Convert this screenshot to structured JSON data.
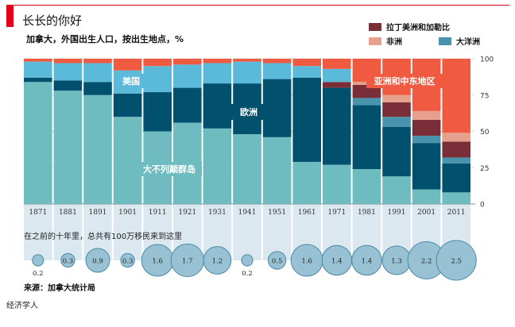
{
  "header": {
    "title": "长长的你好",
    "subtitle": "加拿大，外国出生人口，按出生地点，%"
  },
  "legend": [
    {
      "label": "拉丁美洲和加勒比",
      "color": "#7a2e38"
    },
    {
      "label": "非洲",
      "color": "#e8a08e"
    },
    {
      "label": "大洋洲",
      "color": "#4a93ad"
    }
  ],
  "chart_data": [
    {
      "type": "bar",
      "stacked": true,
      "percent": true,
      "categories": [
        "1871",
        "1881",
        "1891",
        "1901",
        "1911",
        "1921",
        "1931",
        "1941",
        "1951",
        "1961",
        "1971",
        "1981",
        "1991",
        "2001",
        "2011"
      ],
      "series": [
        {
          "name": "大不列颠群岛",
          "color": "#6fbcc0",
          "values": [
            84,
            78,
            75,
            60,
            50,
            56,
            52,
            48,
            46,
            29,
            27,
            24,
            19,
            10,
            8
          ]
        },
        {
          "name": "欧洲",
          "color": "#00506e",
          "values": [
            3,
            7,
            9,
            16,
            27,
            24,
            31,
            35,
            40,
            58,
            53,
            44,
            34,
            32,
            20
          ]
        },
        {
          "name": "大洋洲",
          "color": "#4a93ad",
          "values": [
            0,
            0,
            0,
            0,
            0,
            0,
            0,
            0,
            0,
            0,
            0,
            5,
            7,
            5,
            4
          ]
        },
        {
          "name": "拉丁美洲和加勒比",
          "color": "#7a2e38",
          "values": [
            0,
            0,
            0,
            0,
            0,
            0,
            0,
            0,
            0,
            0,
            4,
            9,
            10,
            11,
            11
          ]
        },
        {
          "name": "非洲",
          "color": "#e8a08e",
          "values": [
            0,
            0,
            0,
            0,
            0,
            0,
            0,
            0,
            0,
            0,
            0,
            2,
            5,
            6,
            6
          ]
        },
        {
          "name": "美国",
          "color": "#5bbad9",
          "values": [
            11,
            12,
            13,
            16,
            18,
            16,
            14,
            15,
            11,
            8,
            9,
            0,
            0,
            0,
            0
          ]
        },
        {
          "name": "亚洲和中东地区",
          "color": "#f05a40",
          "values": [
            2,
            3,
            3,
            8,
            5,
            4,
            3,
            2,
            3,
            5,
            7,
            16,
            25,
            36,
            51
          ]
        }
      ],
      "series_labels": [
        "美国",
        "欧洲",
        "大不列颠群岛",
        "亚洲和中东地区"
      ],
      "ylim": [
        0,
        100
      ],
      "yticks": [
        0,
        25,
        50,
        75,
        100
      ]
    },
    {
      "type": "bubble",
      "title": "在之前的十年里，总共有100万移民来到这里",
      "categories": [
        "1871",
        "1881",
        "1891",
        "1901",
        "1911",
        "1921",
        "1931",
        "1941",
        "1951",
        "1961",
        "1971",
        "1981",
        "1991",
        "2001",
        "2011"
      ],
      "values": [
        0.2,
        0.3,
        0.9,
        0.3,
        1.6,
        1.7,
        1.2,
        0.2,
        0.5,
        1.6,
        1.4,
        1.4,
        1.3,
        2.2,
        2.5
      ],
      "value_labels": [
        "0.2",
        "0.3",
        "0.9",
        "0.3",
        "1.6",
        "1.7",
        "1.2",
        "0.2",
        "0.5",
        "1.6",
        "1.4",
        "1.4",
        "1.3",
        "2.2",
        "2.5"
      ]
    }
  ],
  "footer": {
    "source": "来源：加拿大统计局",
    "brand": "经济学人"
  }
}
